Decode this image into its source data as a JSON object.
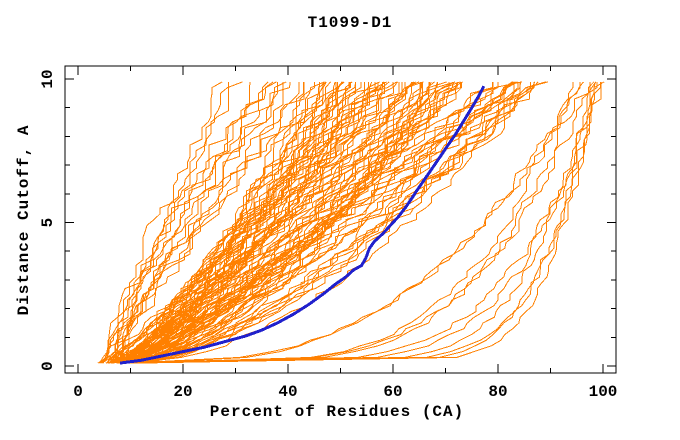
{
  "window": {
    "background": "#ffffff"
  },
  "chart_data": {
    "type": "line",
    "title": "T1099-D1",
    "xlabel": "Percent of Residues (CA)",
    "ylabel": "Distance Cutoff, A",
    "xlim": [
      0,
      100
    ],
    "ylim": [
      0,
      10
    ],
    "grid": false,
    "legend": "none",
    "axis_color": "#000000",
    "x_ticks": {
      "major": [
        0,
        20,
        40,
        60,
        80,
        100
      ],
      "minor": [
        10,
        30,
        50,
        70,
        90
      ],
      "labels": [
        "0",
        "20",
        "40",
        "60",
        "80",
        "100"
      ]
    },
    "y_ticks": {
      "major": [
        0,
        5,
        10
      ],
      "minor": [
        1,
        2,
        3,
        4,
        6,
        7,
        8,
        9
      ],
      "labels": [
        "0",
        "5",
        "10"
      ]
    },
    "series": [
      {
        "name": "predicted-model-curves",
        "role": "ensemble",
        "color": "#ff8000",
        "stroke_width": 1,
        "seed": 11,
        "cutoff_min": 0.1,
        "cutoff_max": 9.9,
        "cutoff_step": 0.2,
        "x_max_clamp": 101,
        "groups": [
          {
            "name": "poor-models",
            "count": 14,
            "start": [
              4.5,
              8
            ],
            "end": [
              26,
              46
            ],
            "shape": [
              1.0,
              1.45
            ],
            "wiggle": 1.7
          },
          {
            "name": "mid-models",
            "count": 88,
            "start": [
              5,
              13
            ],
            "end": [
              44,
              88
            ],
            "shape": [
              0.55,
              1.05
            ],
            "wiggle": 1.6
          },
          {
            "name": "good-models",
            "count": 7,
            "start": [
              8,
              13
            ],
            "end": [
              93,
              101
            ],
            "shape": [
              0.16,
              0.38
            ],
            "wiggle": 1.2
          },
          {
            "name": "near-native-models",
            "count": 4,
            "start": [
              9,
              12
            ],
            "end": [
              97,
              100.5
            ],
            "shape": [
              0.08,
              0.16
            ],
            "wiggle": 0.8
          }
        ]
      },
      {
        "name": "highlighted-model",
        "role": "highlight",
        "color": "#2121cc",
        "stroke_width": 3,
        "points": [
          [
            8,
            0.1
          ],
          [
            12,
            0.2
          ],
          [
            16,
            0.35
          ],
          [
            20,
            0.5
          ],
          [
            24,
            0.65
          ],
          [
            28,
            0.85
          ],
          [
            32,
            1.05
          ],
          [
            35,
            1.25
          ],
          [
            38,
            1.5
          ],
          [
            41,
            1.8
          ],
          [
            44,
            2.15
          ],
          [
            47,
            2.55
          ],
          [
            49,
            2.85
          ],
          [
            51,
            3.1
          ],
          [
            52.5,
            3.35
          ],
          [
            54,
            3.5
          ],
          [
            54.8,
            3.75
          ],
          [
            55.5,
            4.1
          ],
          [
            56.5,
            4.35
          ],
          [
            58,
            4.6
          ],
          [
            59.5,
            4.9
          ],
          [
            61,
            5.2
          ],
          [
            62.5,
            5.55
          ],
          [
            63.8,
            5.9
          ],
          [
            64.5,
            6.1
          ],
          [
            66,
            6.5
          ],
          [
            67.5,
            6.9
          ],
          [
            69,
            7.3
          ],
          [
            70.5,
            7.7
          ],
          [
            72,
            8.1
          ],
          [
            73.5,
            8.55
          ],
          [
            75,
            9.0
          ],
          [
            76.3,
            9.4
          ],
          [
            77.3,
            9.75
          ]
        ]
      }
    ]
  }
}
